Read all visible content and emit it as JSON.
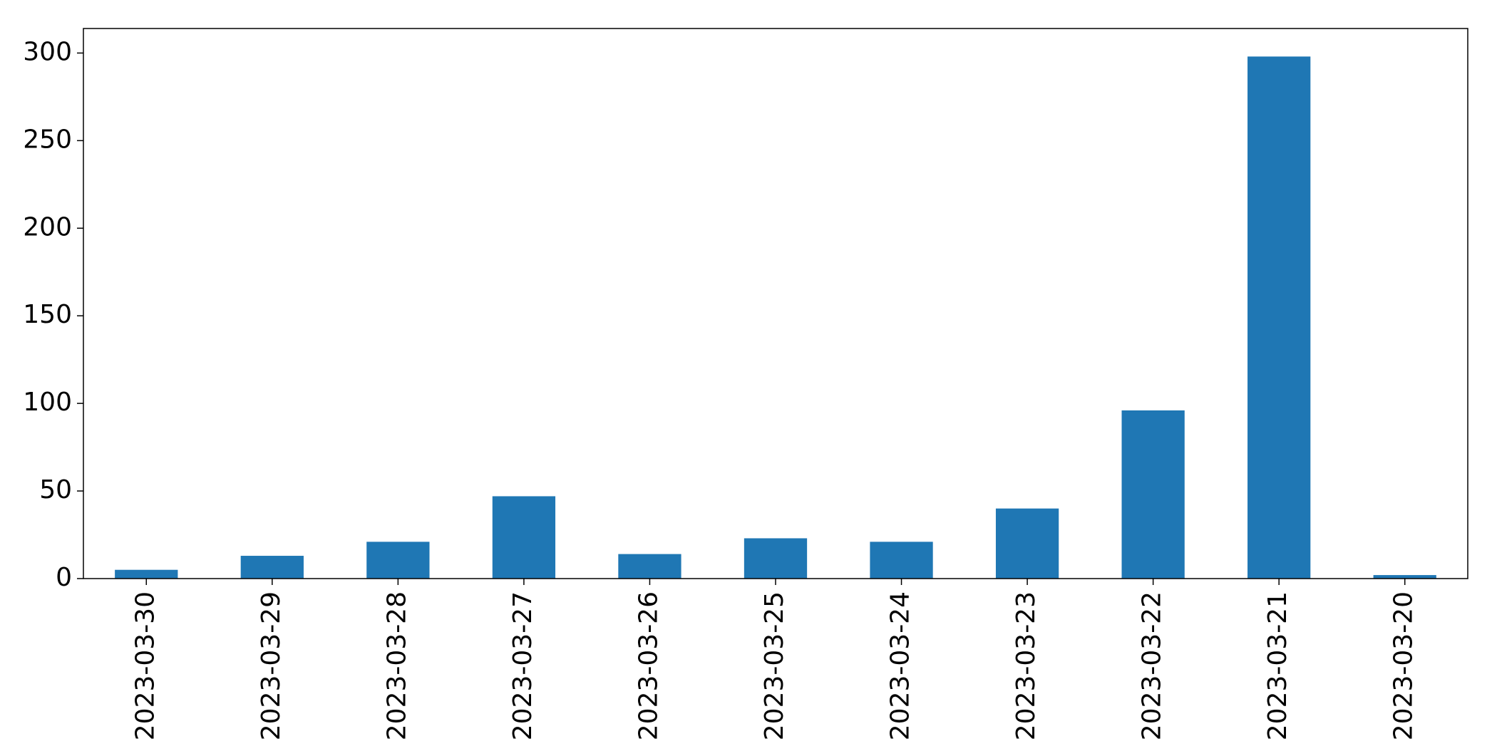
{
  "chart_data": {
    "type": "bar",
    "categories": [
      "2023-03-30",
      "2023-03-29",
      "2023-03-28",
      "2023-03-27",
      "2023-03-26",
      "2023-03-25",
      "2023-03-24",
      "2023-03-23",
      "2023-03-22",
      "2023-03-21",
      "2023-03-20"
    ],
    "values": [
      5,
      13,
      21,
      47,
      14,
      23,
      21,
      40,
      96,
      298,
      2
    ],
    "ylim": [
      0,
      314
    ],
    "yticks": [
      0,
      50,
      100,
      150,
      200,
      250,
      300
    ],
    "grid": false,
    "legend": "none",
    "bar_color": "#1f77b4"
  }
}
